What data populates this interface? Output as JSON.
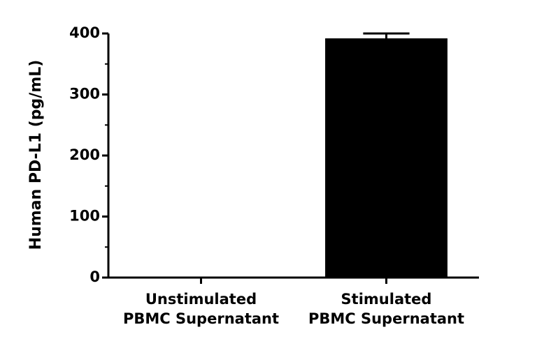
{
  "chart_data": {
    "type": "bar",
    "y_label": "Human PD-L1 (pg/mL)",
    "categories": [
      [
        "Unstimulated",
        "PBMC Supernatant"
      ],
      [
        "Stimulated",
        "PBMC Supernatant"
      ]
    ],
    "values": [
      0,
      392
    ],
    "errors": [
      0,
      8
    ],
    "color": "#000000",
    "ylim": [
      0,
      400
    ],
    "yticks": [
      0,
      100,
      200,
      300,
      400
    ],
    "yminorticks": [
      50,
      150,
      250,
      350
    ]
  }
}
